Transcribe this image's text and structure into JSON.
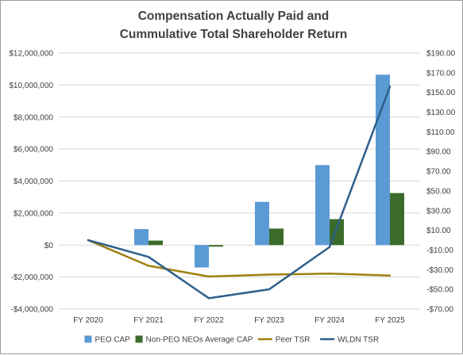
{
  "chart_data": {
    "type": "bar",
    "title_lines": [
      "Compensation Actually Paid and",
      "Cummulative Total Shareholder Return"
    ],
    "categories": [
      "FY 2020",
      "FY 2021",
      "FY 2022",
      "FY 2023",
      "FY 2024",
      "FY 2025"
    ],
    "left_axis": {
      "ylim": [
        -4000000,
        12000000
      ],
      "ticks": [
        12000000,
        10000000,
        8000000,
        6000000,
        4000000,
        2000000,
        0,
        -2000000,
        -4000000
      ],
      "tick_labels": [
        "$12,000,000",
        "$10,000,000",
        "$8,000,000",
        "$6,000,000",
        "$4,000,000",
        "$2,000,000",
        "$0",
        "-$2,000,000",
        "-$4,000,000"
      ]
    },
    "right_axis": {
      "ylim": [
        -70,
        190
      ],
      "ticks": [
        190,
        170,
        150,
        130,
        110,
        90,
        70,
        50,
        30,
        10,
        -10,
        -30,
        -50,
        -70
      ],
      "tick_labels": [
        "$190.00",
        "$170.00",
        "$150.00",
        "$130.00",
        "$110.00",
        "$90.00",
        "$70.00",
        "$50.00",
        "$30.00",
        "$10.00",
        "-$10.00",
        "-$30.00",
        "-$50.00",
        "-$70.00"
      ]
    },
    "grid": true,
    "legend_position": "bottom",
    "series": [
      {
        "name": "PEO CAP",
        "kind": "bar",
        "axis": "left",
        "color": "#5b9bd5",
        "values": [
          0,
          1000000,
          -1400000,
          2700000,
          5000000,
          10650000
        ]
      },
      {
        "name": "Non-PEO NEOs Average CAP",
        "kind": "bar",
        "axis": "left",
        "color": "#3a6b2a",
        "values": [
          0,
          280000,
          -100000,
          1030000,
          1620000,
          3250000
        ]
      },
      {
        "name": "Peer TSR",
        "kind": "line",
        "axis": "right",
        "color": "#a08010",
        "values": [
          0,
          -26,
          -37,
          -35,
          -34,
          -36
        ]
      },
      {
        "name": "WLDN TSR",
        "kind": "line",
        "axis": "right",
        "color": "#2e5f8a",
        "values": [
          0,
          -17,
          -59,
          -50,
          -7,
          156
        ]
      }
    ]
  }
}
